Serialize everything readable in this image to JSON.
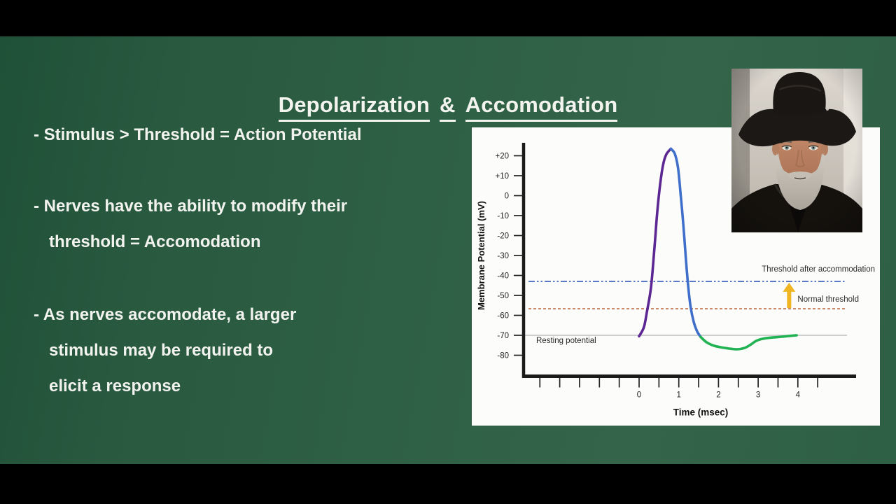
{
  "slide": {
    "title_words": [
      "Depolarization",
      "&",
      "Accomodation"
    ],
    "bullets": [
      {
        "lines": [
          "- Stimulus > Threshold = Action Potential"
        ]
      },
      {
        "lines": [
          "- Nerves have the ability to modify their",
          "threshold = Accomodation"
        ]
      },
      {
        "lines": [
          "- As nerves accomodate, a larger",
          "stimulus may be required to",
          "elicit a response"
        ]
      }
    ],
    "text_color": "#f2f3ee",
    "background_green": "#2e6046"
  },
  "photo": {
    "name": "man-in-black-cowboy-hat-portrait"
  },
  "chart_data": {
    "type": "line",
    "title": "",
    "xlabel": "Time (msec)",
    "ylabel": "Membrane Potential (mV)",
    "x_range": [
      -2.5,
      4.5
    ],
    "x_tick_interval": 0.5,
    "x_labeled_ticks": [
      0,
      1,
      2,
      3,
      4
    ],
    "ylim": [
      -90,
      27
    ],
    "y_ticks": [
      {
        "label": "+20",
        "value": 20
      },
      {
        "label": "+10",
        "value": 10
      },
      {
        "label": "0",
        "value": 0
      },
      {
        "label": "-10",
        "value": -10
      },
      {
        "label": "-20",
        "value": -20
      },
      {
        "label": "-30",
        "value": -30
      },
      {
        "label": "-40",
        "value": -40
      },
      {
        "label": "-50",
        "value": -50
      },
      {
        "label": "-60",
        "value": -60
      },
      {
        "label": "-70",
        "value": -70
      },
      {
        "label": "-80",
        "value": -80
      }
    ],
    "grid": "off",
    "legend": "none",
    "reference_lines": [
      {
        "label": "Threshold after accommodation",
        "value": -43,
        "color": "#3a5dbd",
        "style": "dash-dot-dot"
      },
      {
        "label": "Normal threshold",
        "value": -56.7,
        "color": "#c87f5e",
        "style": "dashed"
      },
      {
        "label": "Resting potential",
        "value": -70,
        "color": "#bfbfbf",
        "style": "solid"
      }
    ],
    "arrow": {
      "meaning": "threshold-raised-by-accommodation",
      "x_msec": 3.78,
      "from_mv": -56.7,
      "to_mv": -44,
      "color": "#f0b522"
    },
    "series": [
      {
        "name": "depolarization",
        "color": "#5c2693",
        "points": [
          [
            0,
            -70.5
          ],
          [
            0.12,
            -66
          ],
          [
            0.2,
            -58
          ],
          [
            0.3,
            -46
          ],
          [
            0.38,
            -28
          ],
          [
            0.45,
            -10
          ],
          [
            0.52,
            4
          ],
          [
            0.6,
            15
          ],
          [
            0.68,
            20.5
          ],
          [
            0.8,
            23.5
          ]
        ]
      },
      {
        "name": "repolarization",
        "color": "#3f6fca",
        "points": [
          [
            0.8,
            23.5
          ],
          [
            0.9,
            21
          ],
          [
            0.98,
            14
          ],
          [
            1.05,
            0
          ],
          [
            1.12,
            -16
          ],
          [
            1.18,
            -32
          ],
          [
            1.24,
            -46
          ],
          [
            1.3,
            -56
          ],
          [
            1.38,
            -63.5
          ],
          [
            1.46,
            -68
          ],
          [
            1.55,
            -70.8
          ]
        ]
      },
      {
        "name": "afterhyperpolarization",
        "color": "#21b353",
        "points": [
          [
            1.55,
            -70.8
          ],
          [
            1.7,
            -73.5
          ],
          [
            1.9,
            -75.3
          ],
          [
            2.15,
            -76.3
          ],
          [
            2.45,
            -77
          ],
          [
            2.65,
            -76.4
          ],
          [
            2.8,
            -74.8
          ],
          [
            2.95,
            -72.8
          ],
          [
            3.1,
            -71.8
          ],
          [
            3.3,
            -71.2
          ],
          [
            3.6,
            -70.7
          ],
          [
            3.85,
            -70.2
          ],
          [
            3.97,
            -70
          ]
        ]
      }
    ]
  }
}
